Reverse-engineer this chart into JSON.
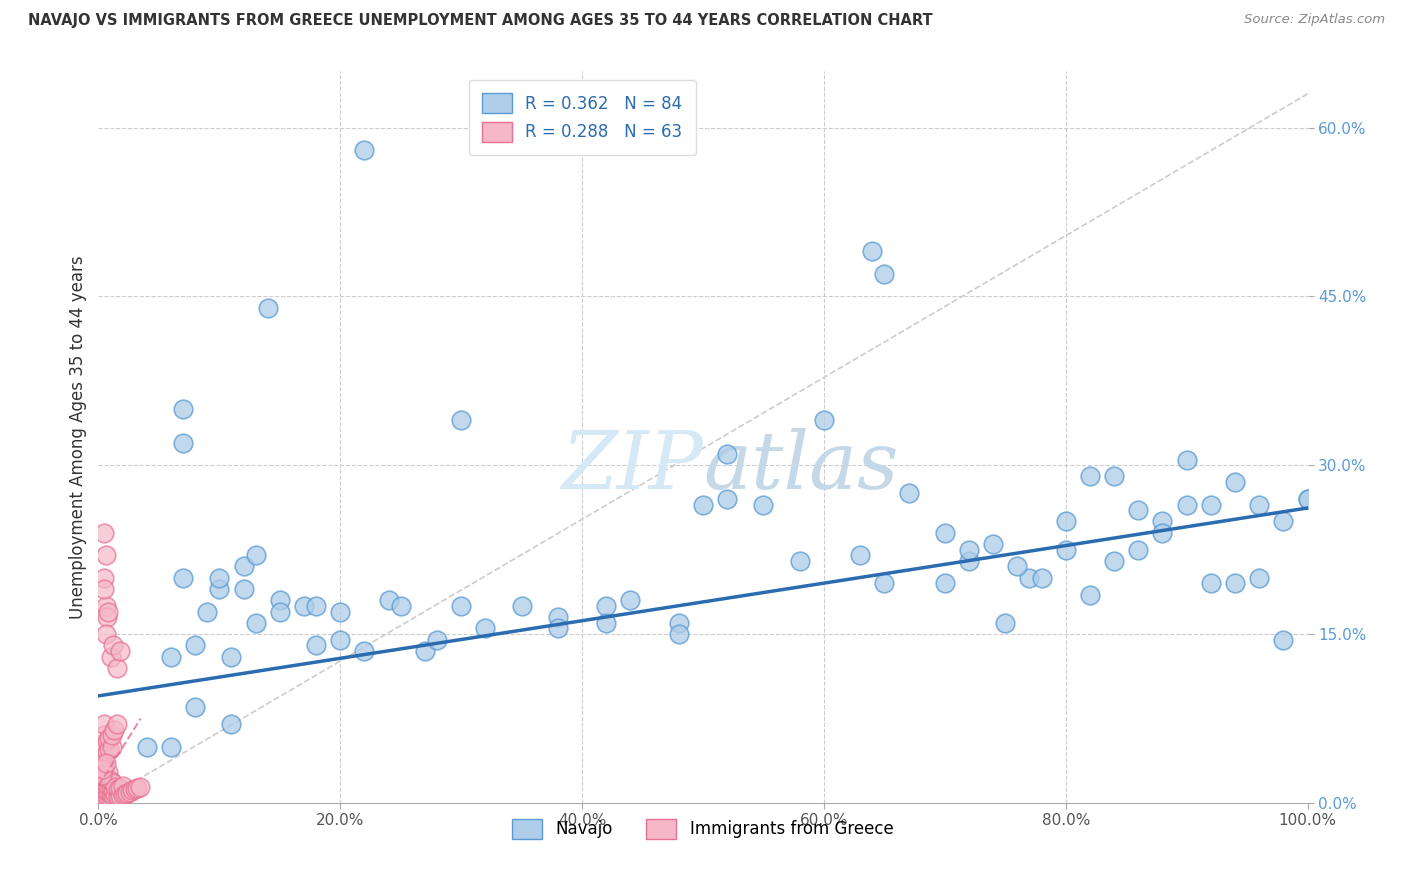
{
  "title": "NAVAJO VS IMMIGRANTS FROM GREECE UNEMPLOYMENT AMONG AGES 35 TO 44 YEARS CORRELATION CHART",
  "source": "Source: ZipAtlas.com",
  "ylabel": "Unemployment Among Ages 35 to 44 years",
  "xlim": [
    0.0,
    1.0
  ],
  "ylim": [
    0.0,
    0.65
  ],
  "navajo_color": "#aecde8",
  "navajo_edge": "#5b9bd5",
  "greece_color": "#f4b8c8",
  "greece_edge": "#e87090",
  "trend_navajo_color": "#2b6cb0",
  "trend_greece_color": "#e87090",
  "diag_color": "#cccccc",
  "grid_color": "#cccccc",
  "watermark_color": "#d5e8f5",
  "navajo_x": [
    0.22,
    0.14,
    0.07,
    0.07,
    0.1,
    0.12,
    0.06,
    0.07,
    0.08,
    0.09,
    0.1,
    0.11,
    0.12,
    0.13,
    0.15,
    0.17,
    0.18,
    0.2,
    0.22,
    0.24,
    0.27,
    0.28,
    0.3,
    0.35,
    0.38,
    0.42,
    0.44,
    0.48,
    0.52,
    0.55,
    0.58,
    0.6,
    0.63,
    0.65,
    0.67,
    0.7,
    0.72,
    0.75,
    0.77,
    0.8,
    0.82,
    0.84,
    0.86,
    0.88,
    0.9,
    0.92,
    0.94,
    0.96,
    0.98,
    1.0,
    0.7,
    0.72,
    0.74,
    0.76,
    0.78,
    0.8,
    0.82,
    0.84,
    0.86,
    0.88,
    0.9,
    0.92,
    0.94,
    0.96,
    0.98,
    1.0,
    0.64,
    0.65,
    0.5,
    0.52,
    0.48,
    0.42,
    0.38,
    0.32,
    0.3,
    0.25,
    0.2,
    0.18,
    0.15,
    0.13,
    0.11,
    0.08,
    0.06,
    0.04
  ],
  "navajo_y": [
    0.58,
    0.44,
    0.32,
    0.35,
    0.19,
    0.21,
    0.13,
    0.2,
    0.14,
    0.17,
    0.2,
    0.13,
    0.19,
    0.22,
    0.18,
    0.175,
    0.14,
    0.145,
    0.135,
    0.18,
    0.135,
    0.145,
    0.34,
    0.175,
    0.165,
    0.175,
    0.18,
    0.16,
    0.27,
    0.265,
    0.215,
    0.34,
    0.22,
    0.195,
    0.275,
    0.195,
    0.215,
    0.16,
    0.2,
    0.25,
    0.185,
    0.215,
    0.225,
    0.25,
    0.305,
    0.265,
    0.285,
    0.265,
    0.25,
    0.27,
    0.24,
    0.225,
    0.23,
    0.21,
    0.2,
    0.225,
    0.29,
    0.29,
    0.26,
    0.24,
    0.265,
    0.195,
    0.195,
    0.2,
    0.145,
    0.27,
    0.49,
    0.47,
    0.265,
    0.31,
    0.15,
    0.16,
    0.155,
    0.155,
    0.175,
    0.175,
    0.17,
    0.175,
    0.17,
    0.16,
    0.07,
    0.085,
    0.05,
    0.05
  ],
  "greece_x": [
    0.005,
    0.005,
    0.005,
    0.005,
    0.005,
    0.005,
    0.005,
    0.005,
    0.005,
    0.005,
    0.008,
    0.008,
    0.008,
    0.008,
    0.008,
    0.01,
    0.01,
    0.01,
    0.01,
    0.012,
    0.012,
    0.012,
    0.014,
    0.014,
    0.016,
    0.016,
    0.018,
    0.018,
    0.02,
    0.02,
    0.022,
    0.024,
    0.026,
    0.028,
    0.03,
    0.032,
    0.034,
    0.005,
    0.005,
    0.005,
    0.007,
    0.007,
    0.009,
    0.009,
    0.011,
    0.011,
    0.013,
    0.015,
    0.005,
    0.006,
    0.006,
    0.007,
    0.008,
    0.006,
    0.005,
    0.005,
    0.01,
    0.012,
    0.015,
    0.018,
    0.003,
    0.004,
    0.006
  ],
  "greece_y": [
    0.003,
    0.006,
    0.009,
    0.012,
    0.016,
    0.019,
    0.023,
    0.028,
    0.034,
    0.04,
    0.005,
    0.01,
    0.015,
    0.02,
    0.027,
    0.004,
    0.008,
    0.013,
    0.019,
    0.006,
    0.011,
    0.018,
    0.007,
    0.014,
    0.005,
    0.012,
    0.006,
    0.013,
    0.007,
    0.015,
    0.008,
    0.009,
    0.01,
    0.011,
    0.012,
    0.013,
    0.014,
    0.05,
    0.06,
    0.07,
    0.045,
    0.055,
    0.048,
    0.058,
    0.05,
    0.06,
    0.065,
    0.07,
    0.2,
    0.22,
    0.175,
    0.165,
    0.17,
    0.15,
    0.24,
    0.19,
    0.13,
    0.14,
    0.12,
    0.135,
    0.025,
    0.03,
    0.035
  ]
}
